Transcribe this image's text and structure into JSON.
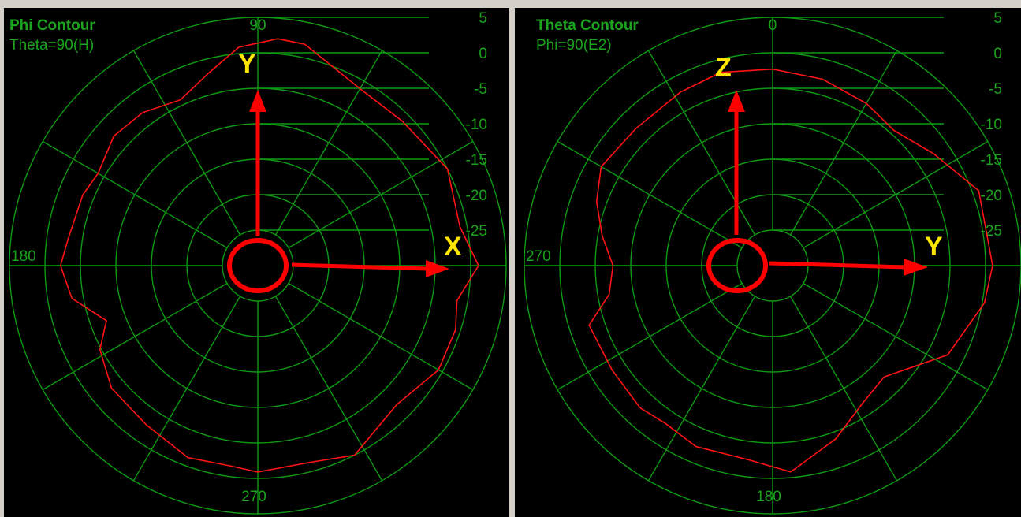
{
  "colors": {
    "background": "#000000",
    "grid": "#0e9a12",
    "text": "#1aa31c",
    "trace": "#ff1414",
    "arrow": "#ff0000",
    "axis_letter": "#ffe600",
    "separator": "#d4d0c8"
  },
  "chart_data": [
    {
      "type": "polar",
      "title": "Phi Contour",
      "subtitle": "Theta=90(H)",
      "angle_labels": {
        "top": "90",
        "left": "180",
        "bottom": "270"
      },
      "radial_range_db": [
        -30,
        5
      ],
      "radial_ticks": [
        "5",
        "0",
        "-5",
        "-10",
        "-15",
        "-20",
        "-25"
      ],
      "overlay_axes": {
        "up": "Y",
        "right": "X"
      },
      "series": [
        {
          "angles_deg": [
            0,
            11,
            27,
            45,
            60,
            78,
            85,
            95,
            104,
            115,
            127,
            138,
            150,
            158,
            172,
            180,
            190,
            200,
            208,
            220,
            235,
            250,
            262,
            270,
            285,
            297,
            315,
            330,
            342,
            350,
            360
          ],
          "gain_db": [
            1.1,
            -1.0,
            0.0,
            -1.2,
            -1.2,
            1.9,
            2.1,
            0.9,
            -1.9,
            -4.2,
            -3.0,
            -2.7,
            -4.0,
            -3.4,
            -3.0,
            -2.2,
            -3.4,
            -7.3,
            -4.8,
            -3.1,
            -2.6,
            -1.2,
            -1.5,
            -0.9,
            -1.3,
            0.0,
            -2.3,
            -0.6,
            -0.7,
            -1.5,
            1.1
          ]
        }
      ]
    },
    {
      "type": "polar",
      "title": "Theta Contour",
      "subtitle": "Phi=90(E2)",
      "angle_labels": {
        "top": "0",
        "left": "270",
        "bottom": "180"
      },
      "radial_range_db": [
        -30,
        5
      ],
      "radial_ticks": [
        "5",
        "0",
        "-5",
        "-10",
        "-15",
        "-20",
        "-25"
      ],
      "overlay_axes": {
        "up": "Z",
        "right": "Y"
      },
      "series": [
        {
          "angles_deg": [
            0,
            20,
            35,
            48,
            60,
            75,
            90,
            105,
            118,
            135,
            150,
            160,
            170,
            180,
            190,
            198,
            213,
            227,
            236,
            247,
            263,
            275,
            290,
            303,
            315,
            333,
            350,
            360
          ],
          "gain_db": [
            1.0,
            0.9,
            -2.4,
            -4.4,
            -3.6,
            -2.8,
            -2.3,
            -1.8,
            -2.3,
            -2.7,
            -2.1,
            -3.6,
            -5.6,
            -7.5,
            -6.6,
            -2.8,
            -3.0,
            -2.6,
            -3.1,
            -2.3,
            -2.4,
            -0.8,
            -4.0,
            -6.8,
            -7.8,
            -2.3,
            0.3,
            1.0
          ]
        }
      ]
    }
  ]
}
